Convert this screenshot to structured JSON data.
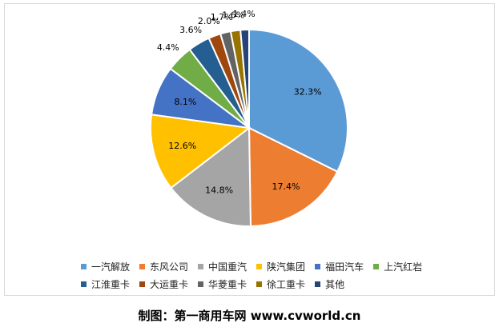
{
  "chart_data": {
    "type": "pie",
    "categories": [
      "一汽解放",
      "东风公司",
      "中国重汽",
      "陕汽集团",
      "福田汽车",
      "上汽红岩",
      "江淮重卡",
      "大运重卡",
      "华菱重卡",
      "徐工重卡",
      "其他"
    ],
    "values": [
      32.3,
      17.4,
      14.8,
      12.6,
      8.1,
      4.4,
      3.6,
      2.0,
      1.7,
      1.6,
      1.4
    ],
    "labels": [
      "32.3%",
      "17.4%",
      "14.8%",
      "12.6%",
      "8.1%",
      "4.4%",
      "3.6%",
      "2.0%",
      "1.7%",
      "1.6%",
      "1.4%"
    ],
    "colors": [
      "#5b9bd5",
      "#ed7d31",
      "#a5a5a5",
      "#ffc000",
      "#4472c4",
      "#70ad47",
      "#255e91",
      "#9e480e",
      "#636363",
      "#997300",
      "#264478"
    ],
    "legend_placement": "bottom"
  },
  "caption": "制图：第一商用车网 www.cvworld.cn"
}
